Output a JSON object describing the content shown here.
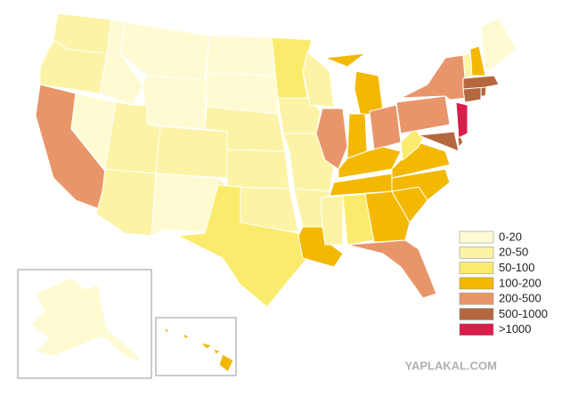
{
  "legend": {
    "items": [
      {
        "label": "0-20",
        "color": "#fefbd2"
      },
      {
        "label": "20-50",
        "color": "#fdf3a6"
      },
      {
        "label": "50-100",
        "color": "#fbeb6c"
      },
      {
        "label": "100-200",
        "color": "#f3b800"
      },
      {
        "label": "200-500",
        "color": "#e9956a"
      },
      {
        "label": "500-1000",
        "color": "#b5683f"
      },
      {
        "label": ">1000",
        "color": "#d81e4a"
      }
    ]
  },
  "watermark": "YAPLAKAL.COM"
}
